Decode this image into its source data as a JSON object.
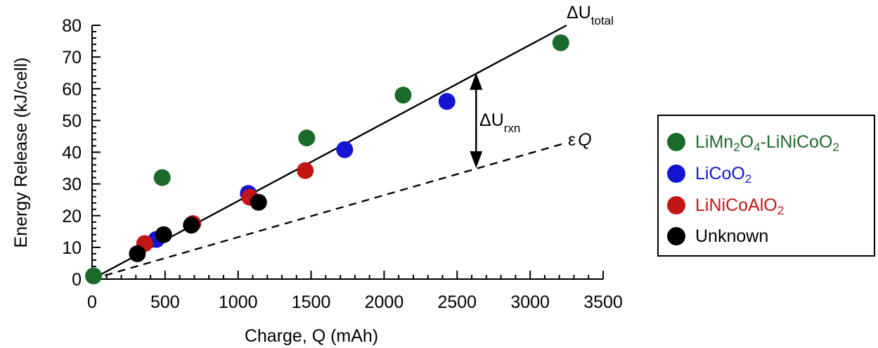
{
  "chart_data": {
    "type": "scatter",
    "xlabel": "Charge, Q (mAh)",
    "ylabel": "Energy Release (kJ/cell)",
    "xlim": [
      0,
      3500
    ],
    "ylim": [
      0,
      80
    ],
    "x_ticks": [
      0,
      500,
      1000,
      1500,
      2000,
      2500,
      3000,
      3500
    ],
    "y_ticks": [
      0,
      10,
      20,
      30,
      40,
      50,
      60,
      70,
      80
    ],
    "grid": false,
    "legend_position": "right",
    "series": [
      {
        "name": "LiMn2O4-LiNiCoO2",
        "color": "#1a6b2a",
        "points": [
          [
            10,
            1
          ],
          [
            480,
            32
          ],
          [
            1470,
            44.5
          ],
          [
            2130,
            58
          ],
          [
            3210,
            74.5
          ]
        ]
      },
      {
        "name": "LiCoO2",
        "color": "#1414d2",
        "points": [
          [
            440,
            12.5
          ],
          [
            1070,
            27
          ],
          [
            1730,
            40.8
          ],
          [
            2430,
            56
          ]
        ]
      },
      {
        "name": "LiNiCoAlO2",
        "color": "#c41515",
        "points": [
          [
            360,
            11.2
          ],
          [
            690,
            17.5
          ],
          [
            1080,
            25.8
          ],
          [
            1460,
            34.2
          ]
        ]
      },
      {
        "name": "Unknown",
        "color": "#000000",
        "points": [
          [
            310,
            8
          ],
          [
            490,
            14
          ],
          [
            680,
            17
          ],
          [
            1140,
            24.2
          ]
        ]
      }
    ],
    "lines": [
      {
        "label": "ΔU_total",
        "style": "solid",
        "from": [
          0,
          0
        ],
        "to": [
          3250,
          80
        ]
      },
      {
        "label": "εQ",
        "style": "dashed",
        "from": [
          0,
          0
        ],
        "to": [
          3250,
          43
        ]
      }
    ],
    "annotations": [
      {
        "label": "ΔU_rxn",
        "type": "double-arrow",
        "x": 2630,
        "y_from": 35,
        "y_to": 65
      }
    ]
  },
  "labels": {
    "total_main": "ΔU",
    "total_sub": "total",
    "rxn_main": "ΔU",
    "rxn_sub": "rxn",
    "eps_main": "ε",
    "eps_var": "Q"
  },
  "legend": {
    "items": [
      {
        "parts": [
          [
            "LiMn",
            ""
          ],
          [
            "2",
            "sub"
          ],
          [
            "O",
            ""
          ],
          [
            "4",
            "sub"
          ],
          [
            "-LiNiCoO",
            ""
          ],
          [
            "2",
            "sub"
          ]
        ]
      },
      {
        "parts": [
          [
            "LiCoO",
            ""
          ],
          [
            "2",
            "sub"
          ]
        ]
      },
      {
        "parts": [
          [
            "LiNiCoAlO",
            ""
          ],
          [
            "2",
            "sub"
          ]
        ]
      },
      {
        "parts": [
          [
            "Unknown",
            ""
          ]
        ]
      }
    ]
  }
}
